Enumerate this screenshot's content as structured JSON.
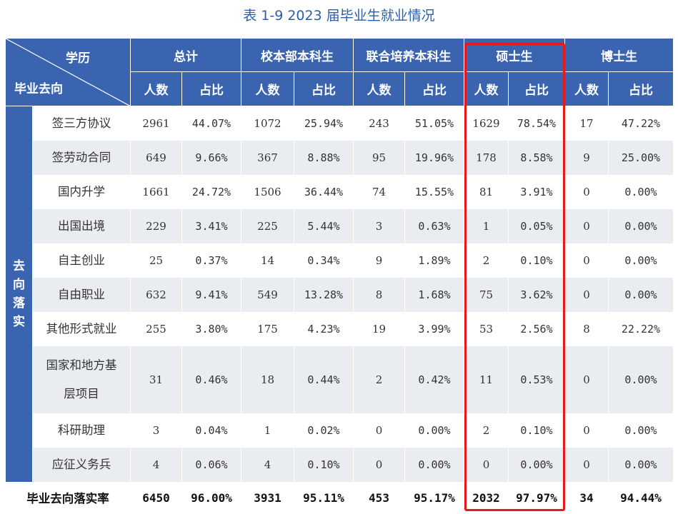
{
  "title": "表 1-9  2023 届毕业生就业情况",
  "header": {
    "corner_top": "学历",
    "corner_bottom": "毕业去向",
    "groups": [
      "总计",
      "校本部本科生",
      "联合培养本科生",
      "硕士生",
      "博士生"
    ],
    "sub": [
      "人数",
      "占比"
    ]
  },
  "side_label": "去向落实",
  "rows": [
    {
      "cat": "签三方协议",
      "v": [
        "2961",
        "44.07%",
        "1072",
        "25.94%",
        "243",
        "51.05%",
        "1629",
        "78.54%",
        "17",
        "47.22%"
      ]
    },
    {
      "cat": "签劳动合同",
      "v": [
        "649",
        "9.66%",
        "367",
        "8.88%",
        "95",
        "19.96%",
        "178",
        "8.58%",
        "9",
        "25.00%"
      ]
    },
    {
      "cat": "国内升学",
      "v": [
        "1661",
        "24.72%",
        "1506",
        "36.44%",
        "74",
        "15.55%",
        "81",
        "3.91%",
        "0",
        "0.00%"
      ]
    },
    {
      "cat": "出国出境",
      "v": [
        "229",
        "3.41%",
        "225",
        "5.44%",
        "3",
        "0.63%",
        "1",
        "0.05%",
        "0",
        "0.00%"
      ]
    },
    {
      "cat": "自主创业",
      "v": [
        "25",
        "0.37%",
        "14",
        "0.34%",
        "9",
        "1.89%",
        "2",
        "0.10%",
        "0",
        "0.00%"
      ]
    },
    {
      "cat": "自由职业",
      "v": [
        "632",
        "9.41%",
        "549",
        "13.28%",
        "8",
        "1.68%",
        "75",
        "3.62%",
        "0",
        "0.00%"
      ]
    },
    {
      "cat": "其他形式就业",
      "v": [
        "255",
        "3.80%",
        "175",
        "4.23%",
        "19",
        "3.99%",
        "53",
        "2.56%",
        "8",
        "22.22%"
      ]
    },
    {
      "cat": "国家和地方基层项目",
      "v": [
        "31",
        "0.46%",
        "18",
        "0.44%",
        "2",
        "0.42%",
        "11",
        "0.53%",
        "0",
        "0.00%"
      ]
    },
    {
      "cat": "科研助理",
      "v": [
        "3",
        "0.04%",
        "1",
        "0.02%",
        "0",
        "0.00%",
        "2",
        "0.10%",
        "0",
        "0.00%"
      ]
    },
    {
      "cat": "应征义务兵",
      "v": [
        "4",
        "0.06%",
        "4",
        "0.10%",
        "0",
        "0.00%",
        "0",
        "0.00%",
        "0",
        "0.00%"
      ]
    }
  ],
  "total": {
    "label": "毕业去向落实率",
    "v": [
      "6450",
      "96.00%",
      "3931",
      "95.11%",
      "453",
      "95.17%",
      "2032",
      "97.97%",
      "34",
      "94.44%"
    ]
  },
  "colors": {
    "header_bg": "#3a64b0",
    "stripe": "#e9edf1",
    "highlight": "#e8191c",
    "title": "#2d5fa6"
  }
}
